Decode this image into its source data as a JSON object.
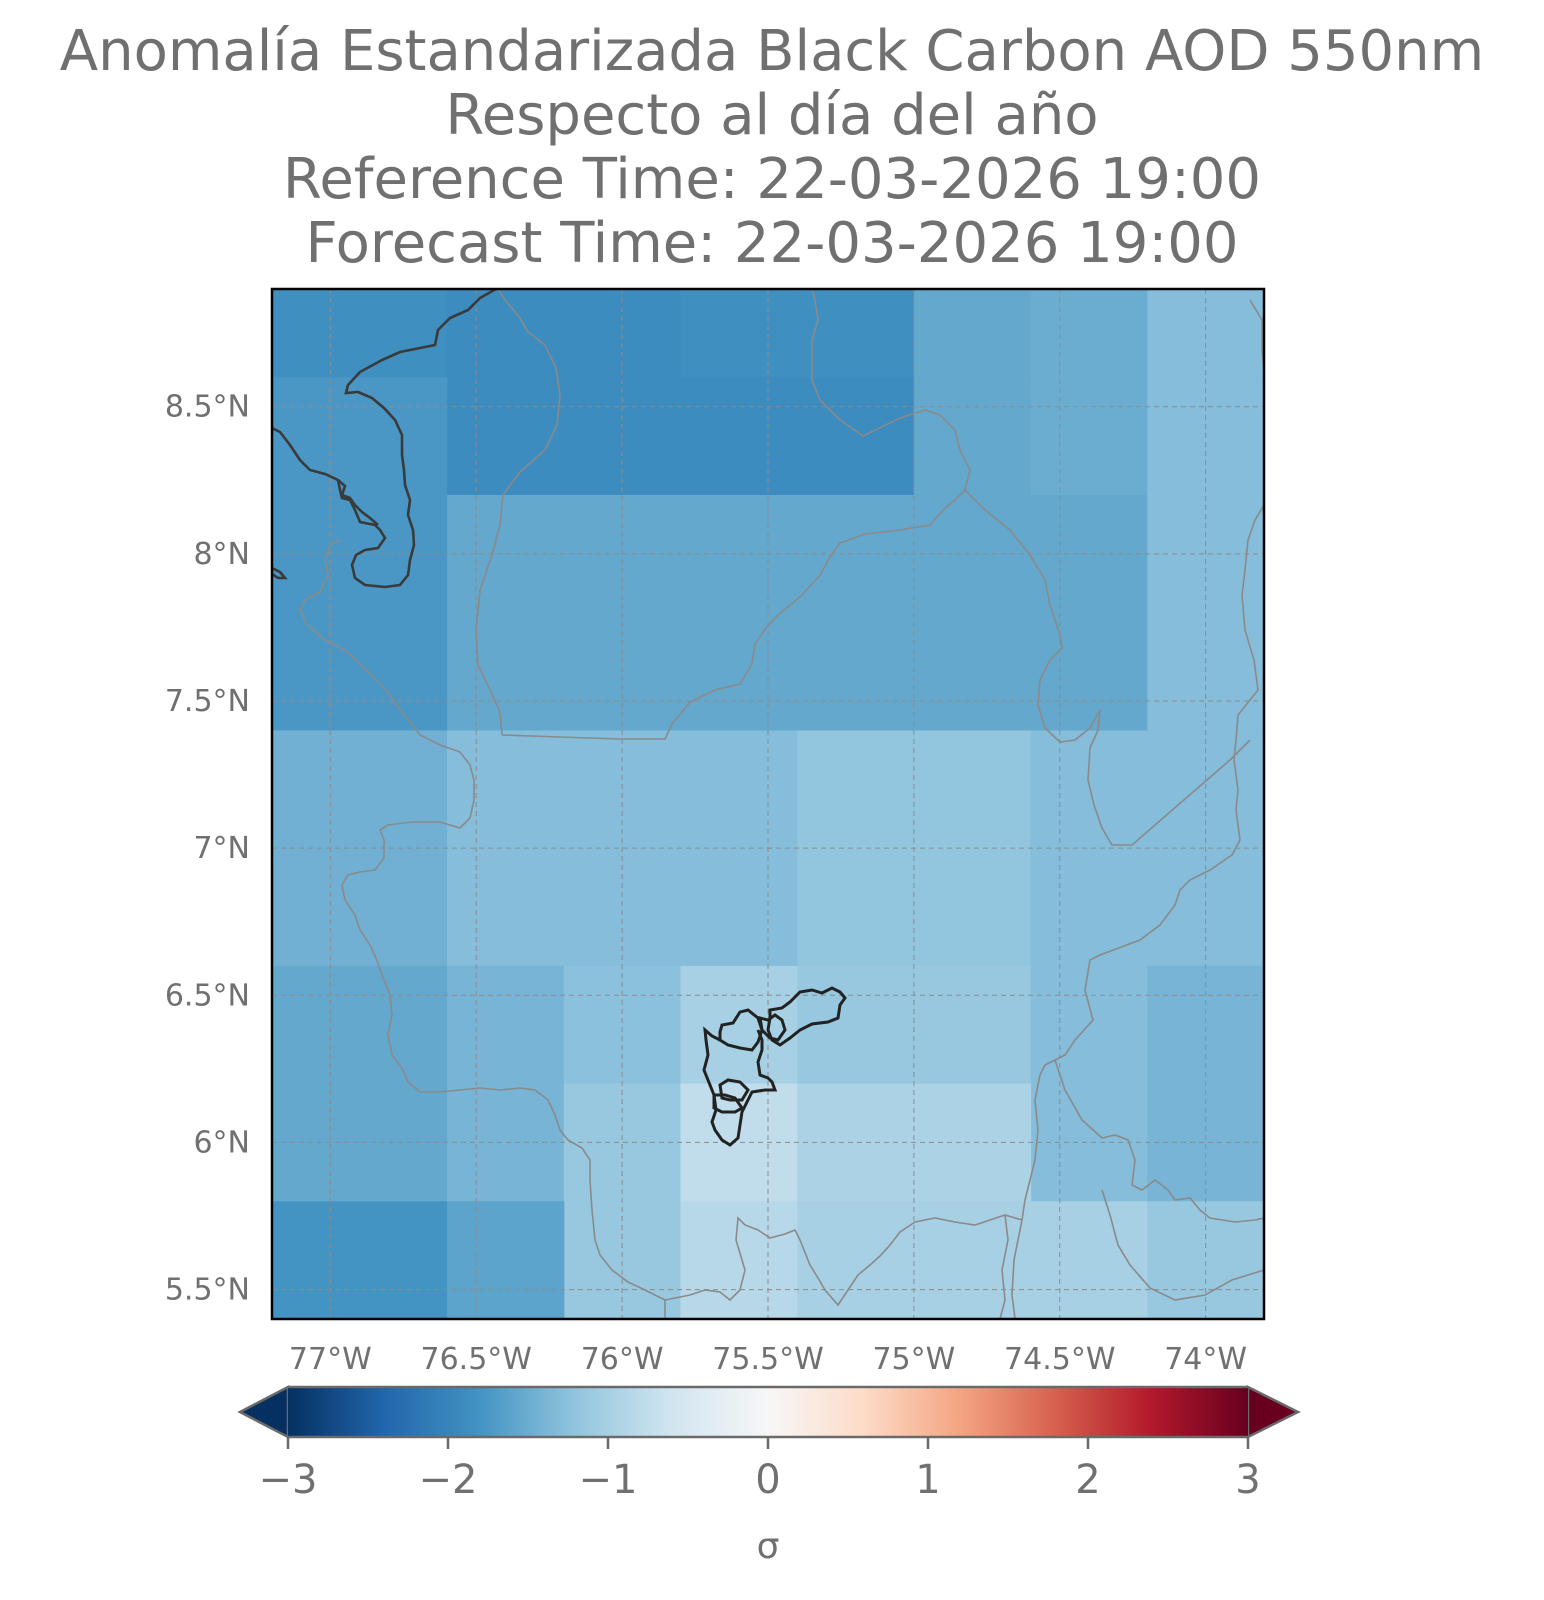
{
  "title": {
    "line1": "Anomalía Estandarizada Black Carbon AOD 550nm",
    "line2": "Respecto al día del año",
    "line3": "Reference Time: 22-03-2026 19:00",
    "line4": "Forecast Time: 22-03-2026 19:00"
  },
  "map": {
    "lon_range": [
      -77.2,
      -73.8
    ],
    "lat_range": [
      5.4,
      8.9
    ],
    "lon_ticks": [
      -77,
      -76.5,
      -76,
      -75.5,
      -75,
      -74.5,
      -74
    ],
    "lat_ticks": [
      8.5,
      8,
      7.5,
      7,
      6.5,
      6,
      5.5
    ],
    "lon_tick_labels": [
      "77°W",
      "76.5°W",
      "76°W",
      "75.5°W",
      "75°W",
      "74.5°W",
      "74°W"
    ],
    "lat_tick_labels": [
      "8.5°N",
      "8°N",
      "7.5°N",
      "7°N",
      "6.5°N",
      "6°N",
      "5.5°N"
    ],
    "grid": true,
    "grid_style": "dashed"
  },
  "chart_data": {
    "type": "heatmap",
    "variable": "Black Carbon AOD 550nm standardized anomaly",
    "units": "σ",
    "color_scale": "RdBu_r",
    "vmin": -3,
    "vmax": 3,
    "cells": [
      {
        "lon": [
          -77.2,
          -76.6
        ],
        "lat": [
          8.6,
          8.9
        ],
        "value": -1.85
      },
      {
        "lon": [
          -76.6,
          -75.8
        ],
        "lat": [
          8.6,
          8.9
        ],
        "value": -1.9
      },
      {
        "lon": [
          -75.8,
          -75.0
        ],
        "lat": [
          8.6,
          8.9
        ],
        "value": -1.85
      },
      {
        "lon": [
          -75.0,
          -74.6
        ],
        "lat": [
          8.6,
          8.9
        ],
        "value": -1.55
      },
      {
        "lon": [
          -74.6,
          -74.2
        ],
        "lat": [
          8.6,
          8.9
        ],
        "value": -1.5
      },
      {
        "lon": [
          -74.2,
          -73.8
        ],
        "lat": [
          8.6,
          8.9
        ],
        "value": -1.3
      },
      {
        "lon": [
          -77.2,
          -76.6
        ],
        "lat": [
          8.2,
          8.6
        ],
        "value": -1.75
      },
      {
        "lon": [
          -76.6,
          -75.0
        ],
        "lat": [
          8.2,
          8.6
        ],
        "value": -1.9
      },
      {
        "lon": [
          -75.0,
          -74.6
        ],
        "lat": [
          8.2,
          8.6
        ],
        "value": -1.55
      },
      {
        "lon": [
          -74.6,
          -74.2
        ],
        "lat": [
          8.2,
          8.6
        ],
        "value": -1.5
      },
      {
        "lon": [
          -74.2,
          -73.8
        ],
        "lat": [
          8.2,
          8.6
        ],
        "value": -1.3
      },
      {
        "lon": [
          -77.2,
          -76.6
        ],
        "lat": [
          7.4,
          8.2
        ],
        "value": -1.75
      },
      {
        "lon": [
          -76.6,
          -75.0
        ],
        "lat": [
          7.4,
          8.2
        ],
        "value": -1.55
      },
      {
        "lon": [
          -75.0,
          -74.2
        ],
        "lat": [
          7.4,
          8.2
        ],
        "value": -1.55
      },
      {
        "lon": [
          -74.2,
          -73.8
        ],
        "lat": [
          7.4,
          8.2
        ],
        "value": -1.3
      },
      {
        "lon": [
          -77.2,
          -76.6
        ],
        "lat": [
          6.6,
          7.4
        ],
        "value": -1.45
      },
      {
        "lon": [
          -76.6,
          -75.4
        ],
        "lat": [
          6.6,
          7.4
        ],
        "value": -1.3
      },
      {
        "lon": [
          -75.4,
          -74.6
        ],
        "lat": [
          6.6,
          7.4
        ],
        "value": -1.2
      },
      {
        "lon": [
          -74.6,
          -73.8
        ],
        "lat": [
          6.6,
          7.4
        ],
        "value": -1.3
      },
      {
        "lon": [
          -77.2,
          -76.6
        ],
        "lat": [
          5.8,
          6.6
        ],
        "value": -1.55
      },
      {
        "lon": [
          -76.6,
          -76.2
        ],
        "lat": [
          5.8,
          6.6
        ],
        "value": -1.4
      },
      {
        "lon": [
          -76.2,
          -75.8
        ],
        "lat": [
          6.2,
          6.6
        ],
        "value": -1.25
      },
      {
        "lon": [
          -75.8,
          -75.4
        ],
        "lat": [
          6.2,
          6.6
        ],
        "value": -1.0
      },
      {
        "lon": [
          -75.4,
          -74.6
        ],
        "lat": [
          6.2,
          6.6
        ],
        "value": -1.15
      },
      {
        "lon": [
          -74.6,
          -74.2
        ],
        "lat": [
          5.8,
          6.6
        ],
        "value": -1.3
      },
      {
        "lon": [
          -74.2,
          -73.8
        ],
        "lat": [
          5.8,
          6.6
        ],
        "value": -1.4
      },
      {
        "lon": [
          -76.2,
          -75.8
        ],
        "lat": [
          5.4,
          6.2
        ],
        "value": -1.15
      },
      {
        "lon": [
          -75.8,
          -75.4
        ],
        "lat": [
          5.8,
          6.2
        ],
        "value": -0.75
      },
      {
        "lon": [
          -75.4,
          -74.6
        ],
        "lat": [
          5.8,
          6.2
        ],
        "value": -0.95
      },
      {
        "lon": [
          -77.2,
          -76.6
        ],
        "lat": [
          5.4,
          5.8
        ],
        "value": -1.8
      },
      {
        "lon": [
          -76.6,
          -76.2
        ],
        "lat": [
          5.4,
          5.8
        ],
        "value": -1.6
      },
      {
        "lon": [
          -75.8,
          -75.4
        ],
        "lat": [
          5.4,
          5.8
        ],
        "value": -0.85
      },
      {
        "lon": [
          -75.4,
          -74.2
        ],
        "lat": [
          5.4,
          5.8
        ],
        "value": -1.0
      },
      {
        "lon": [
          -74.2,
          -73.8
        ],
        "lat": [
          5.4,
          5.8
        ],
        "value": -1.15
      }
    ]
  },
  "colorbar": {
    "ticks": [
      -3,
      -2,
      -1,
      0,
      1,
      2,
      3
    ],
    "tick_labels": [
      "−3",
      "−2",
      "−1",
      "0",
      "1",
      "2",
      "3"
    ],
    "label": "σ",
    "extend": "both"
  },
  "colors": {
    "text": "#707070",
    "frame": "#000000",
    "coastline": "#404040",
    "department_border": "#8a8a8a",
    "highlight_border": "#222222",
    "grid": "#8c8c8c",
    "colormap_stops": [
      "#053061",
      "#2166ac",
      "#4393c3",
      "#92c5de",
      "#d1e5f0",
      "#f7f7f7",
      "#fddbc7",
      "#f4a582",
      "#d6604d",
      "#b2182b",
      "#67001f"
    ]
  }
}
